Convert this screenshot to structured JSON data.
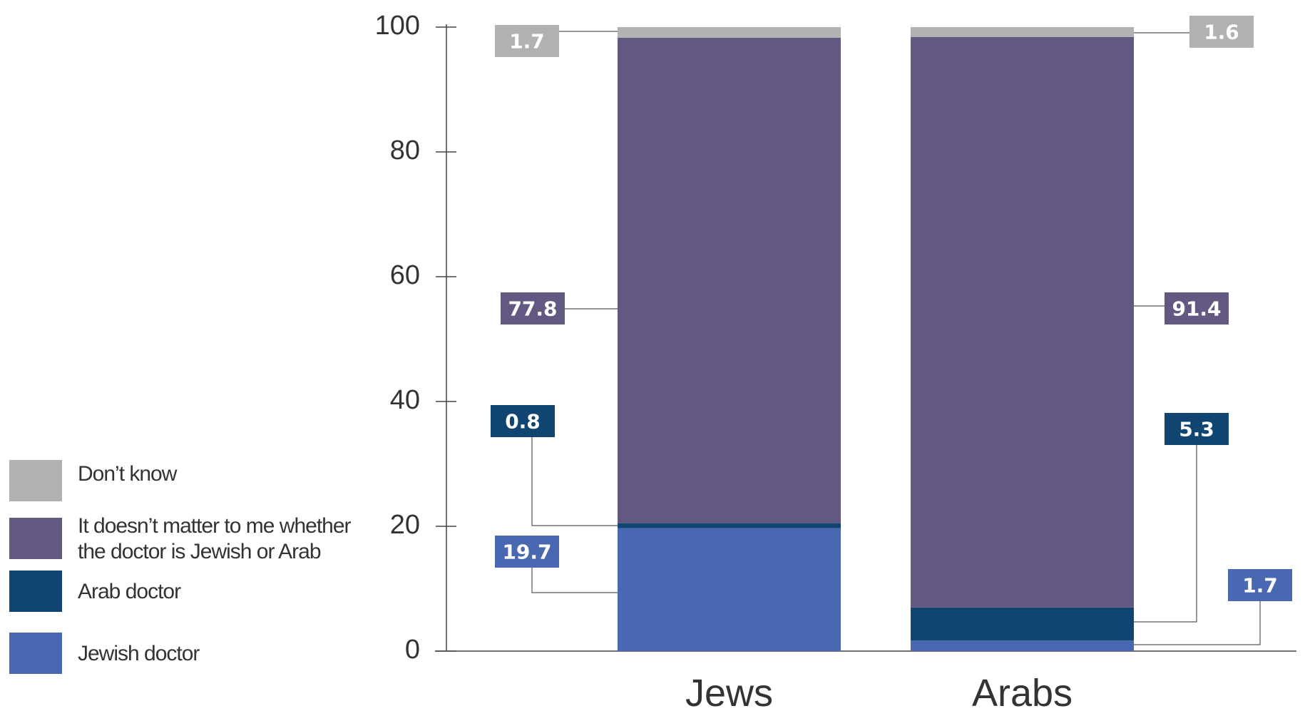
{
  "chart_data": {
    "type": "bar",
    "stacked": true,
    "categories": [
      "Jews",
      "Arabs"
    ],
    "yticks": [
      "0",
      "20",
      "40",
      "60",
      "80",
      "100"
    ],
    "ylim": [
      0,
      100
    ],
    "grid": false,
    "legend_position": "bottom-left",
    "title": "",
    "xlabel": "",
    "ylabel": "",
    "series": [
      {
        "name": "Jewish doctor",
        "values": [
          19.7,
          1.7
        ],
        "labels": [
          "19.7",
          "1.7"
        ],
        "color": "#4a67b1"
      },
      {
        "name": "Arab doctor",
        "values": [
          0.8,
          5.3
        ],
        "labels": [
          "0.8",
          "5.3"
        ],
        "color": "#0f4570"
      },
      {
        "name": "It doesn’t matter to me whether the doctor is Jewish or Arab",
        "values": [
          77.8,
          91.4
        ],
        "labels": [
          "77.8",
          "91.4"
        ],
        "color": "#625882"
      },
      {
        "name": "Don’t know",
        "values": [
          1.7,
          1.6
        ],
        "labels": [
          "1.7",
          "1.6"
        ],
        "color": "#b1b1b1"
      }
    ]
  },
  "legend": {
    "items": [
      {
        "label": "Don’t know",
        "color": "#b1b1b1"
      },
      {
        "label": "It doesn’t matter to me whether\nthe doctor is Jewish or Arab",
        "color": "#625882"
      },
      {
        "label": "Arab doctor",
        "color": "#0f4570"
      },
      {
        "label": "Jewish doctor",
        "color": "#4a67b1"
      }
    ]
  }
}
